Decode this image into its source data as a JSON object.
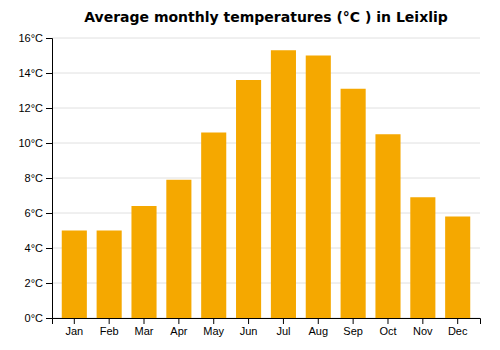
{
  "chart_data": {
    "type": "bar",
    "title": "Average monthly temperatures (°C ) in Leixlip",
    "categories": [
      "Jan",
      "Feb",
      "Mar",
      "Apr",
      "May",
      "Jun",
      "Jul",
      "Aug",
      "Sep",
      "Oct",
      "Nov",
      "Dec"
    ],
    "values": [
      5.0,
      5.0,
      6.4,
      7.9,
      10.6,
      13.6,
      15.3,
      15.0,
      13.1,
      10.5,
      6.9,
      5.8
    ],
    "color": "#F5A800",
    "ylim": [
      0,
      16
    ],
    "yticks": [
      {
        "value": 0,
        "label": "0°C"
      },
      {
        "value": 2,
        "label": "2°C"
      },
      {
        "value": 4,
        "label": "4°C"
      },
      {
        "value": 6,
        "label": "6°C"
      },
      {
        "value": 8,
        "label": "8°C"
      },
      {
        "value": 10,
        "label": "10°C"
      },
      {
        "value": 12,
        "label": "12°C"
      },
      {
        "value": 14,
        "label": "14°C"
      },
      {
        "value": 16,
        "label": "16°C"
      }
    ],
    "grid": true
  }
}
